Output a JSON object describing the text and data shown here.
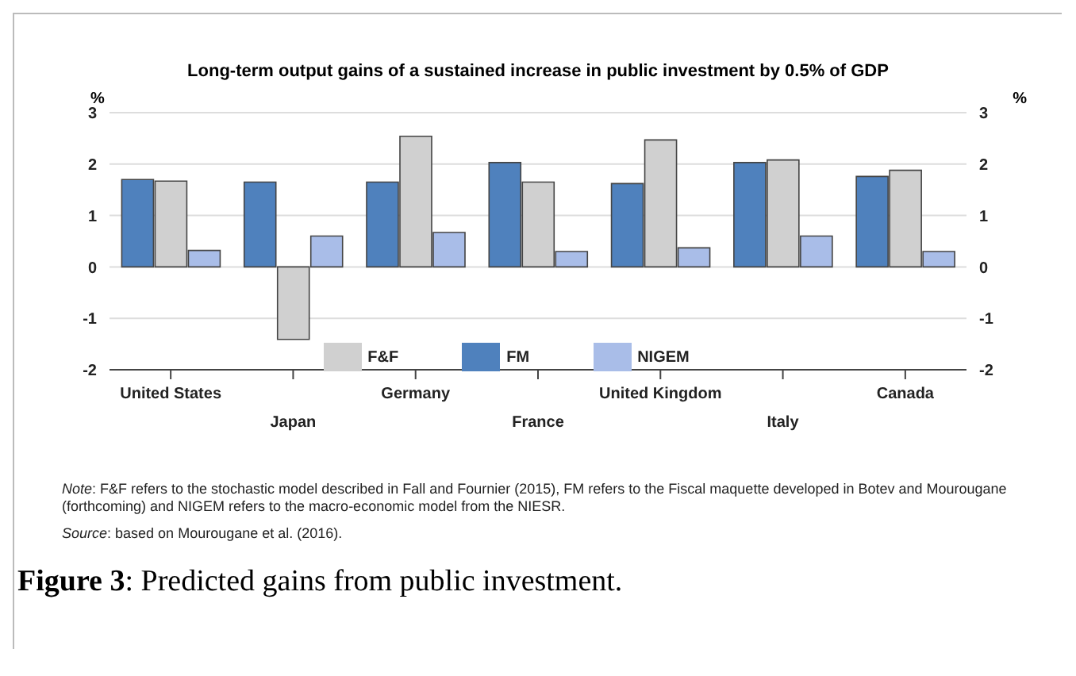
{
  "chart_data": {
    "type": "bar",
    "title": "Long-term output gains of a sustained increase in public investment by 0.5% of GDP",
    "ylabel": "%",
    "y2label": "%",
    "categories": [
      "United States",
      "Japan",
      "Germany",
      "France",
      "United Kingdom",
      "Italy",
      "Canada"
    ],
    "series": [
      {
        "name": "FM",
        "color": "#4f81bd",
        "values": [
          1.7,
          1.65,
          1.65,
          2.03,
          1.62,
          2.03,
          1.76
        ]
      },
      {
        "name": "F&F",
        "color": "#d0d0d0",
        "values": [
          1.67,
          -1.41,
          2.54,
          1.65,
          2.47,
          2.08,
          1.88
        ]
      },
      {
        "name": "NIGEM",
        "color": "#a9bde8",
        "values": [
          0.32,
          0.6,
          0.67,
          0.3,
          0.37,
          0.6,
          0.3
        ]
      }
    ],
    "ylim": [
      -2,
      3
    ],
    "yticks": [
      -2,
      -1,
      0,
      1,
      2,
      3
    ],
    "y2lim": [
      -2,
      3
    ],
    "y2ticks": [
      -2,
      -1,
      0,
      1,
      2,
      3
    ],
    "grid": "y",
    "legend": "bottom",
    "annotations": [
      "Note: F&F refers to the stochastic model described in Fall and Fournier (2015), FM refers to the Fiscal maquette developed in Botev and Mourougane (forthcoming) and NIGEM refers to the macro-economic model from the NIESR.",
      "Source: based on Mourougane  et al. (2016).",
      "Figure 3: Predicted gains from public investment."
    ]
  }
}
